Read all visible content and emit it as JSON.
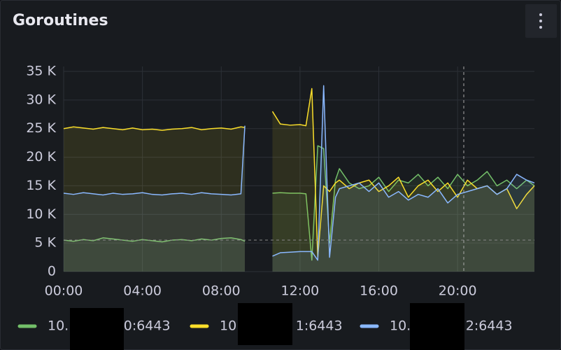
{
  "chart_data": {
    "type": "line",
    "title": "Goroutines",
    "x": [
      0,
      0.5,
      1,
      1.5,
      2,
      2.5,
      3,
      3.5,
      4,
      4.5,
      5,
      5.5,
      6,
      6.5,
      7,
      7.5,
      8,
      8.5,
      9,
      9.2,
      9.6,
      10.6,
      11,
      11.5,
      12,
      12.3,
      12.6,
      12.9,
      13.2,
      13.5,
      13.8,
      14,
      14.5,
      15,
      15.5,
      16,
      16.5,
      17,
      17.5,
      18,
      18.5,
      19,
      19.5,
      20,
      20.5,
      21,
      21.5,
      22,
      22.5,
      23,
      23.5,
      23.9
    ],
    "xlim": [
      0,
      23.9
    ],
    "xticks": [
      {
        "value": 0,
        "label": "00:00"
      },
      {
        "value": 4,
        "label": "04:00"
      },
      {
        "value": 8,
        "label": "08:00"
      },
      {
        "value": 12,
        "label": "12:00"
      },
      {
        "value": 16,
        "label": "16:00"
      },
      {
        "value": 20,
        "label": "20:00"
      }
    ],
    "ylim": [
      0,
      35000
    ],
    "yticks": [
      {
        "value": 0,
        "label": "0"
      },
      {
        "value": 5000,
        "label": "5 K"
      },
      {
        "value": 10000,
        "label": "10 K"
      },
      {
        "value": 15000,
        "label": "15 K"
      },
      {
        "value": 20000,
        "label": "20 K"
      },
      {
        "value": 25000,
        "label": "25 K"
      },
      {
        "value": 30000,
        "label": "30 K"
      },
      {
        "value": 35000,
        "label": "35 K"
      }
    ],
    "grid": true,
    "series": [
      {
        "name": "10.             0:6443",
        "color": "#73bf69",
        "values": [
          5500,
          5300,
          5600,
          5400,
          5900,
          5700,
          5500,
          5300,
          5600,
          5400,
          5200,
          5500,
          5600,
          5400,
          5700,
          5500,
          5800,
          5900,
          5600,
          5300,
          null,
          13700,
          13800,
          13700,
          13700,
          13600,
          2000,
          22000,
          21500,
          5000,
          16000,
          18000,
          15500,
          14500,
          15000,
          16500,
          14000,
          16000,
          15500,
          17000,
          15000,
          16500,
          14500,
          17000,
          15000,
          16000,
          17500,
          15000,
          16000,
          14500,
          16000,
          15000
        ]
      },
      {
        "name": "10              1:6443",
        "color": "#fade2a",
        "values": [
          25000,
          25300,
          25100,
          24900,
          25200,
          25000,
          24800,
          25100,
          24800,
          24900,
          24700,
          24900,
          25000,
          25200,
          24800,
          25000,
          25100,
          24900,
          25300,
          25200,
          null,
          28000,
          25800,
          25600,
          25700,
          25500,
          32000,
          2500,
          15000,
          14000,
          15500,
          16000,
          14500,
          15500,
          16000,
          14000,
          15000,
          16500,
          13000,
          15000,
          16000,
          14000,
          15500,
          13000,
          16000,
          14500,
          15000,
          13500,
          14500,
          11000,
          13500,
          15000
        ]
      },
      {
        "name": "10.             2:6443",
        "color": "#8ab8ff",
        "values": [
          13700,
          13500,
          13800,
          13600,
          13400,
          13700,
          13500,
          13600,
          13800,
          13500,
          13400,
          13600,
          13700,
          13500,
          13800,
          13600,
          13500,
          13400,
          13600,
          25500,
          null,
          2700,
          3300,
          3400,
          3500,
          3500,
          3500,
          2000,
          32500,
          2500,
          13000,
          14500,
          15000,
          15500,
          14000,
          15500,
          13000,
          14000,
          12500,
          13500,
          13000,
          14500,
          12000,
          13500,
          14000,
          14500,
          15000,
          13500,
          14500,
          17000,
          16000,
          15500
        ]
      }
    ]
  }
}
